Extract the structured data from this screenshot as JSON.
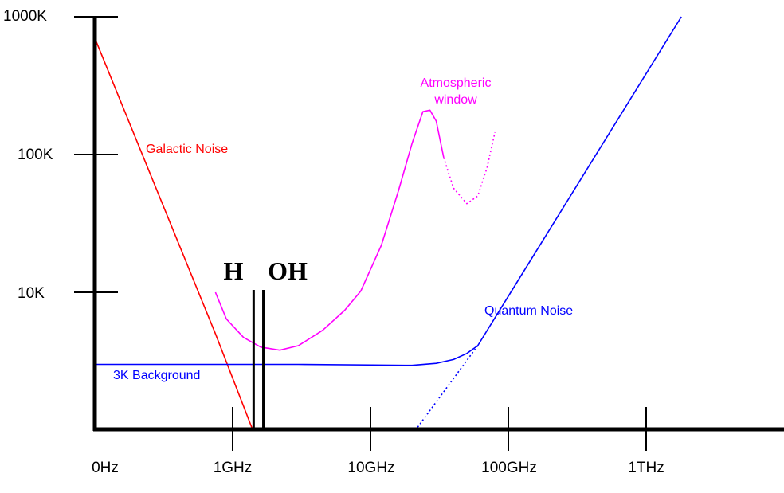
{
  "chart_data": {
    "type": "line",
    "title": "",
    "xlabel": "",
    "ylabel": "",
    "x_scale": "log",
    "y_scale": "log",
    "x_ticks": [
      "0Hz",
      "1GHz",
      "10GHz",
      "100GHz",
      "1THz"
    ],
    "y_ticks": [
      "10K",
      "100K",
      "1000K"
    ],
    "grid": false,
    "legend": "none",
    "series": [
      {
        "name": "Galactic Noise",
        "color": "#ff0000",
        "style": "solid",
        "points": [
          [
            0.1,
            700
          ],
          [
            0.75,
            5
          ],
          [
            1.4,
            1
          ]
        ]
      },
      {
        "name": "3K Background",
        "color": "#0000ff",
        "style": "solid",
        "points": [
          [
            0.1,
            3
          ],
          [
            3,
            3
          ],
          [
            20,
            2.95
          ],
          [
            30,
            3.05
          ],
          [
            40,
            3.25
          ],
          [
            50,
            3.6
          ],
          [
            60,
            4.1
          ]
        ]
      },
      {
        "name": "Quantum Noise",
        "color": "#0000ff",
        "style": "solid",
        "points": [
          [
            60,
            4.1
          ],
          [
            1800,
            1000
          ]
        ]
      },
      {
        "name": "",
        "color": "#0000ff",
        "style": "dotted",
        "points": [
          [
            22,
            1.05
          ],
          [
            60,
            4.1
          ]
        ]
      },
      {
        "name": "Atmospheric window",
        "color": "#ff00ff",
        "style": "solid",
        "points": [
          [
            0.75,
            10
          ],
          [
            0.9,
            6.4
          ],
          [
            1.2,
            4.7
          ],
          [
            1.6,
            4
          ],
          [
            2.2,
            3.8
          ],
          [
            3,
            4.1
          ],
          [
            4.5,
            5.3
          ],
          [
            6.5,
            7.4
          ],
          [
            8.5,
            10.2
          ],
          [
            12,
            22
          ],
          [
            16,
            55
          ],
          [
            20,
            120
          ],
          [
            24,
            205
          ],
          [
            27,
            210
          ],
          [
            30,
            175
          ],
          [
            34,
            95
          ]
        ]
      },
      {
        "name": "",
        "color": "#ff00ff",
        "style": "dotted",
        "points": [
          [
            34,
            95
          ],
          [
            40,
            57
          ],
          [
            50,
            44
          ],
          [
            60,
            50
          ],
          [
            70,
            80
          ],
          [
            80,
            145
          ]
        ]
      }
    ],
    "markers": [
      {
        "label": "H",
        "x": 1.42
      },
      {
        "label": "OH",
        "x": 1.67
      }
    ],
    "annotations": [
      {
        "text": "Galactic Noise",
        "color": "#ff0000"
      },
      {
        "text": "3K Background",
        "color": "#0000ff"
      },
      {
        "text": "Quantum Noise",
        "color": "#0000ff"
      },
      {
        "text": "Atmospheric",
        "color": "#ff00ff"
      },
      {
        "text": "window",
        "color": "#ff00ff"
      }
    ]
  }
}
